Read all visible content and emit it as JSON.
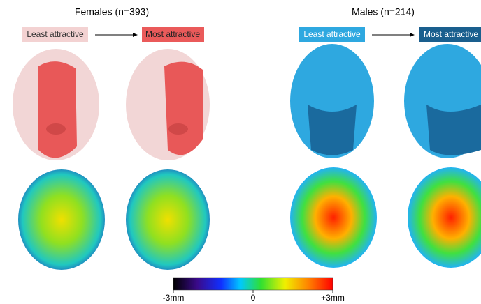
{
  "panels": [
    {
      "title": "Females (n=393)",
      "from_label": "Least attractive",
      "to_label": "Most attractive"
    },
    {
      "title": "Males (n=214)",
      "from_label": "Least attractive",
      "to_label": "Most attractive"
    }
  ],
  "colorbar": {
    "ticks": [
      "-3mm",
      "0",
      "+3mm"
    ]
  }
}
